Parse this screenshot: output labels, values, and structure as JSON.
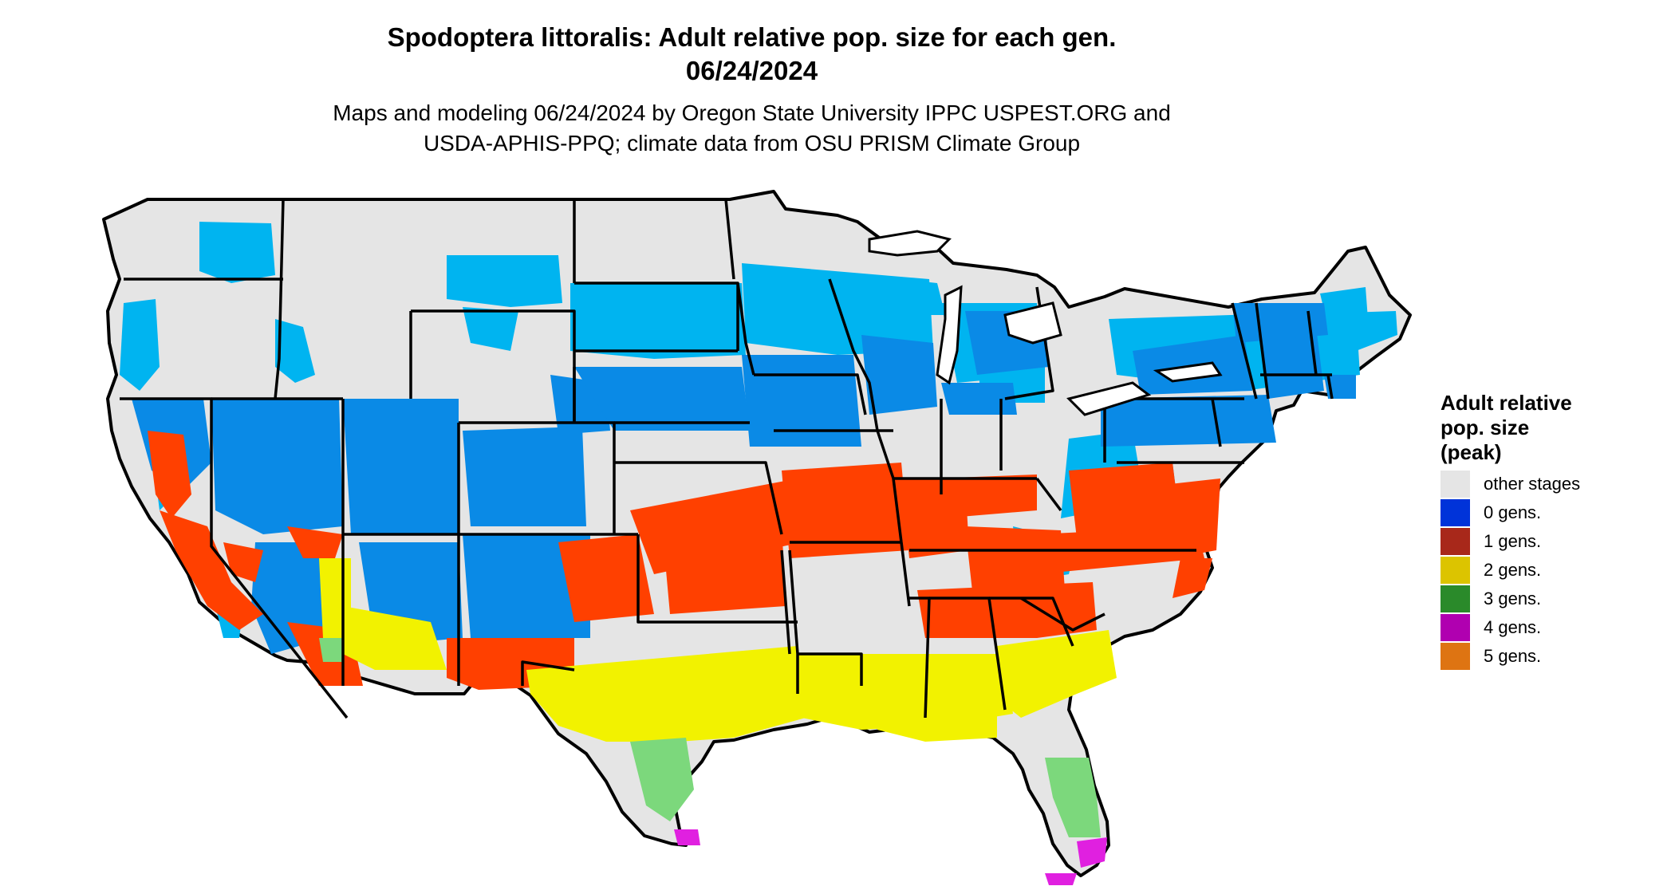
{
  "title_line1": "Spodoptera littoralis: Adult relative pop. size for each gen.",
  "title_line2": "06/24/2024",
  "subtitle_line1": "Maps and modeling 06/24/2024 by Oregon State University IPPC USPEST.ORG and",
  "subtitle_line2": "USDA-APHIS-PPQ; climate data from OSU PRISM Climate Group",
  "legend": {
    "title_line1": "Adult relative",
    "title_line2": "pop. size",
    "title_line3": "(peak)",
    "items": [
      {
        "label": "other stages",
        "color": "#e5e5e5"
      },
      {
        "label": "0 gens.",
        "color": "#0033d9"
      },
      {
        "label": "1 gens.",
        "color": "#a8281a"
      },
      {
        "label": "2 gens.",
        "color": "#dcc400"
      },
      {
        "label": "3 gens.",
        "color": "#2a8a2a"
      },
      {
        "label": "4 gens.",
        "color": "#b000b0"
      },
      {
        "label": "5 gens.",
        "color": "#de7412"
      }
    ]
  },
  "map_colors": {
    "land": "#e5e5e5",
    "light_blue": "#00b4f0",
    "mid_blue": "#0a8ae6",
    "red_orange": "#ff4000",
    "yellow": "#f2f200",
    "light_green": "#7cd87c",
    "magenta": "#e020e0",
    "border": "#000000"
  }
}
